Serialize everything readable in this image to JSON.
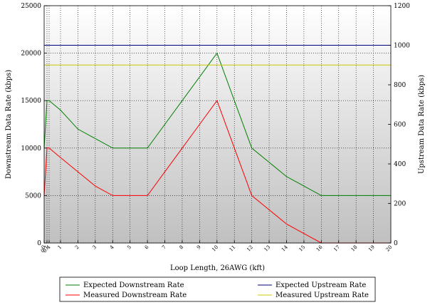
{
  "chart_data": {
    "type": "line",
    "title": "",
    "xlabel": "Loop Length, 26AWG (kft)",
    "ylabel": "Downstream Data Rate (kbps)",
    "y2label": "Upstream Data Rate (kbps)",
    "x_ticks": [
      "0",
      "0.1",
      "0.4",
      "1",
      "2",
      "3",
      "4",
      "5",
      "6",
      "7",
      "8",
      "9",
      "10",
      "11",
      "12",
      "13",
      "14",
      "15",
      "16",
      "17",
      "18",
      "19",
      "20"
    ],
    "xlim": [
      0,
      20
    ],
    "ylim": [
      0,
      25000
    ],
    "y_ticks": [
      "0",
      "5000",
      "10000",
      "15000",
      "20000",
      "25000"
    ],
    "y2lim": [
      0,
      1200
    ],
    "y2_ticks": [
      "0",
      "200",
      "400",
      "600",
      "800",
      "1000",
      "1200"
    ],
    "grid": true,
    "legend_position": "bottom",
    "series": [
      {
        "name": "Expected Downstream Rate",
        "axis": "left",
        "color": "#008000",
        "x": [
          0,
          0.1,
          0.4,
          1,
          2,
          3,
          4,
          5,
          6,
          7,
          8,
          9,
          10,
          11,
          12,
          13,
          14,
          15,
          16,
          17,
          18,
          19,
          20
        ],
        "y": [
          10000,
          15000,
          15000,
          14000,
          12000,
          11000,
          10000,
          10000,
          10000,
          12500,
          15000,
          17500,
          20000,
          15000,
          10000,
          8500,
          7000,
          6000,
          5000,
          5000,
          5000,
          5000,
          5000
        ]
      },
      {
        "name": "Measured Downstream Rate",
        "axis": "left",
        "color": "#ff0000",
        "x": [
          0,
          0.1,
          0.4,
          1,
          2,
          3,
          4,
          5,
          6,
          7,
          8,
          9,
          10,
          11,
          12,
          13,
          14,
          15,
          16,
          17,
          18,
          19,
          20
        ],
        "y": [
          5000,
          10000,
          10000,
          9000,
          7500,
          6000,
          5000,
          5000,
          5000,
          7500,
          10000,
          12500,
          15000,
          10000,
          5000,
          3500,
          2000,
          1000,
          0,
          0,
          0,
          0,
          0
        ]
      },
      {
        "name": "Expected Upstream Rate",
        "axis": "right",
        "color": "#000080",
        "x": [
          0,
          20
        ],
        "y": [
          1000,
          1000
        ]
      },
      {
        "name": "Measured Upstream Rate",
        "axis": "right",
        "color": "#c8c800",
        "x": [
          0,
          20
        ],
        "y": [
          900,
          900
        ]
      }
    ]
  }
}
